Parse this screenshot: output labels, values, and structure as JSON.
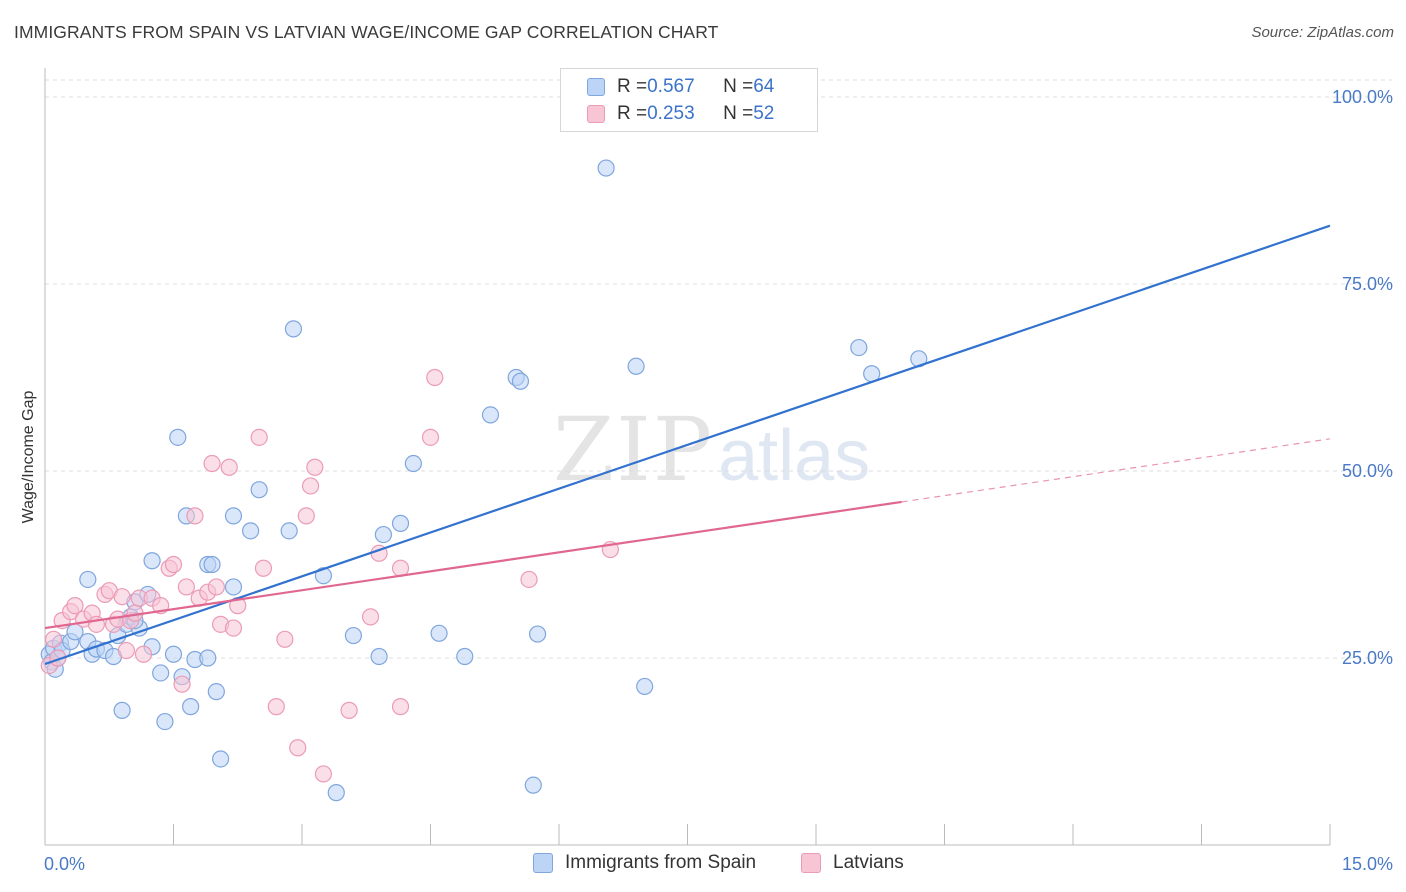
{
  "header": {
    "title": "IMMIGRANTS FROM SPAIN VS LATVIAN WAGE/INCOME GAP CORRELATION CHART",
    "source": "Source: ZipAtlas.com"
  },
  "legend": {
    "rows": [
      {
        "r_label": "R = ",
        "r_value": "0.567",
        "n_label": "N = ",
        "n_value": "64"
      },
      {
        "r_label": "R = ",
        "r_value": "0.253",
        "n_label": "N = ",
        "n_value": "52"
      }
    ]
  },
  "bottom_legend": {
    "spain": "Immigrants from Spain",
    "latvians": "Latvians"
  },
  "watermark": {
    "zip": "ZIP",
    "atlas": "atlas"
  },
  "colors": {
    "spain_fill": "#bcd4f5",
    "spain_stroke": "#7fa6dd",
    "spain_line": "#3272cf",
    "latvian_fill": "#f8c5d5",
    "latvian_stroke": "#eb9bb6",
    "latvian_line": "#e0678f",
    "grid": "#dddddd",
    "tick_label": "#4a7ac6"
  },
  "chart_data": {
    "type": "scatter",
    "title": "IMMIGRANTS FROM SPAIN VS LATVIAN WAGE/INCOME GAP CORRELATION CHART",
    "xlabel": "",
    "ylabel": "Wage/Income Gap",
    "xlim": [
      0,
      15
    ],
    "ylim": [
      0,
      105
    ],
    "x_tick_labels": [
      "0.0%",
      "15.0%"
    ],
    "y_ticks": [
      25,
      50,
      75,
      100
    ],
    "y_tick_labels": [
      "25.0%",
      "50.0%",
      "75.0%",
      "100.0%"
    ],
    "grid": true,
    "legend_position": "top-center",
    "series": [
      {
        "name": "Immigrants from Spain",
        "R": 0.567,
        "N": 64,
        "trend": {
          "x0": 0,
          "y0": 24.2,
          "x1": 15,
          "y1": 82.8,
          "dashed_from": null
        },
        "points": [
          [
            0.05,
            25.5
          ],
          [
            0.08,
            24.5
          ],
          [
            0.1,
            26.3
          ],
          [
            0.12,
            23.5
          ],
          [
            0.15,
            25.0
          ],
          [
            0.18,
            27.0
          ],
          [
            0.2,
            26.0
          ],
          [
            0.3,
            27.2
          ],
          [
            0.35,
            28.5
          ],
          [
            0.5,
            27.2
          ],
          [
            0.55,
            25.5
          ],
          [
            0.6,
            26.2
          ],
          [
            0.7,
            26.0
          ],
          [
            0.8,
            25.2
          ],
          [
            0.85,
            28.0
          ],
          [
            0.95,
            29.5
          ],
          [
            1.0,
            30.5
          ],
          [
            1.05,
            32.5
          ],
          [
            1.1,
            29.0
          ],
          [
            1.2,
            33.5
          ],
          [
            1.25,
            26.5
          ],
          [
            1.35,
            23.0
          ],
          [
            1.4,
            16.5
          ],
          [
            1.5,
            25.5
          ],
          [
            1.6,
            22.5
          ],
          [
            1.7,
            18.5
          ],
          [
            1.75,
            24.8
          ],
          [
            1.9,
            25.0
          ],
          [
            2.0,
            20.5
          ],
          [
            2.05,
            11.5
          ],
          [
            2.2,
            34.5
          ],
          [
            2.4,
            42.0
          ],
          [
            2.5,
            47.5
          ],
          [
            2.85,
            42.0
          ],
          [
            3.25,
            36.0
          ],
          [
            3.4,
            7.0
          ],
          [
            3.6,
            28.0
          ],
          [
            3.9,
            25.2
          ],
          [
            4.15,
            43.0
          ],
          [
            4.3,
            51.0
          ],
          [
            4.6,
            28.3
          ],
          [
            4.9,
            25.2
          ],
          [
            5.2,
            57.5
          ],
          [
            5.5,
            62.5
          ],
          [
            5.55,
            62.0
          ],
          [
            6.55,
            90.5
          ],
          [
            6.9,
            64.0
          ],
          [
            7.0,
            21.2
          ],
          [
            9.5,
            66.5
          ],
          [
            9.65,
            63.0
          ],
          [
            10.2,
            65.0
          ],
          [
            0.9,
            18.0
          ],
          [
            1.05,
            30.0
          ],
          [
            0.5,
            35.5
          ],
          [
            1.25,
            38.0
          ],
          [
            1.55,
            54.5
          ],
          [
            1.9,
            37.5
          ],
          [
            1.95,
            37.5
          ],
          [
            2.2,
            44.0
          ],
          [
            1.65,
            44.0
          ],
          [
            2.9,
            69.0
          ],
          [
            3.95,
            41.5
          ],
          [
            5.7,
            8.0
          ],
          [
            5.75,
            28.2
          ]
        ]
      },
      {
        "name": "Latvians",
        "R": 0.253,
        "N": 52,
        "trend": {
          "x0": 0,
          "y0": 29.0,
          "x1": 15,
          "y1": 54.3,
          "dashed_from": 10.0
        },
        "points": [
          [
            0.05,
            24.0
          ],
          [
            0.1,
            27.5
          ],
          [
            0.15,
            25.0
          ],
          [
            0.2,
            30.0
          ],
          [
            0.3,
            31.2
          ],
          [
            0.35,
            32.0
          ],
          [
            0.45,
            30.2
          ],
          [
            0.55,
            31.0
          ],
          [
            0.6,
            29.5
          ],
          [
            0.7,
            33.5
          ],
          [
            0.75,
            34.0
          ],
          [
            0.8,
            29.5
          ],
          [
            0.85,
            30.2
          ],
          [
            0.9,
            33.2
          ],
          [
            0.95,
            26.0
          ],
          [
            1.0,
            30.0
          ],
          [
            1.05,
            31.0
          ],
          [
            1.1,
            33.0
          ],
          [
            1.15,
            25.5
          ],
          [
            1.25,
            33.0
          ],
          [
            1.35,
            32.0
          ],
          [
            1.45,
            37.0
          ],
          [
            1.5,
            37.5
          ],
          [
            1.6,
            21.5
          ],
          [
            1.65,
            34.5
          ],
          [
            1.75,
            44.0
          ],
          [
            1.8,
            33.0
          ],
          [
            1.9,
            33.8
          ],
          [
            1.95,
            51.0
          ],
          [
            2.0,
            34.5
          ],
          [
            2.05,
            29.5
          ],
          [
            2.15,
            50.5
          ],
          [
            2.2,
            29.0
          ],
          [
            2.25,
            32.0
          ],
          [
            2.5,
            54.5
          ],
          [
            2.55,
            37.0
          ],
          [
            2.7,
            18.5
          ],
          [
            2.8,
            27.5
          ],
          [
            2.95,
            13.0
          ],
          [
            3.05,
            44.0
          ],
          [
            3.1,
            48.0
          ],
          [
            3.15,
            50.5
          ],
          [
            3.25,
            9.5
          ],
          [
            3.55,
            18.0
          ],
          [
            3.8,
            30.5
          ],
          [
            3.9,
            39.0
          ],
          [
            4.15,
            37.0
          ],
          [
            4.15,
            18.5
          ],
          [
            4.5,
            54.5
          ],
          [
            4.55,
            62.5
          ],
          [
            5.65,
            35.5
          ],
          [
            6.6,
            39.5
          ]
        ]
      }
    ]
  }
}
